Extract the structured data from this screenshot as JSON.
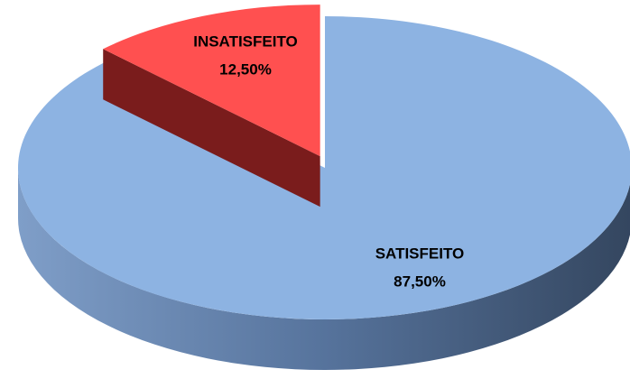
{
  "chart_data": {
    "type": "pie",
    "categories": [
      "SATISFEITO",
      "INSATISFEITO"
    ],
    "values": [
      87.5,
      12.5
    ],
    "value_labels": [
      "87,50%",
      "12,50%"
    ],
    "colors": [
      "#8db3e2",
      "#ff5050"
    ]
  }
}
